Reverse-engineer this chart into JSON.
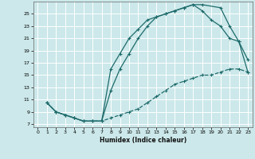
{
  "xlabel": "Humidex (Indice chaleur)",
  "background_color": "#cce8ea",
  "grid_color": "#ffffff",
  "line_color": "#1e6b6b",
  "xlim": [
    -0.5,
    23.5
  ],
  "ylim": [
    6.5,
    27
  ],
  "xticks": [
    0,
    1,
    2,
    3,
    4,
    5,
    6,
    7,
    8,
    9,
    10,
    11,
    12,
    13,
    14,
    15,
    16,
    17,
    18,
    19,
    20,
    21,
    22,
    23
  ],
  "yticks": [
    7,
    9,
    11,
    13,
    15,
    17,
    19,
    21,
    23,
    25
  ],
  "line1_x": [
    1,
    2,
    3,
    4,
    5,
    6,
    7,
    8,
    9,
    10,
    11,
    12,
    13,
    14,
    15,
    16,
    17,
    18,
    19,
    20,
    21,
    22,
    23
  ],
  "line1_y": [
    10.5,
    9.0,
    8.5,
    8.0,
    7.5,
    7.5,
    7.5,
    8.0,
    8.5,
    9.0,
    9.5,
    10.5,
    11.5,
    12.5,
    13.5,
    14.0,
    14.5,
    15.0,
    15.0,
    15.5,
    16.0,
    16.0,
    15.5
  ],
  "line2_x": [
    1,
    2,
    3,
    4,
    5,
    6,
    7,
    8,
    9,
    10,
    11,
    12,
    13,
    14,
    15,
    16,
    17,
    18,
    20,
    21,
    22,
    23
  ],
  "line2_y": [
    10.5,
    9.0,
    8.5,
    8.0,
    7.5,
    7.5,
    7.5,
    16.0,
    18.5,
    21.0,
    22.5,
    24.0,
    24.5,
    25.0,
    25.5,
    26.0,
    26.5,
    26.5,
    26.0,
    23.0,
    20.5,
    17.5
  ],
  "line3_x": [
    1,
    2,
    3,
    4,
    5,
    6,
    7,
    8,
    9,
    10,
    11,
    12,
    13,
    14,
    15,
    16,
    17,
    18,
    19,
    20,
    21,
    22,
    23
  ],
  "line3_y": [
    10.5,
    9.0,
    8.5,
    8.0,
    7.5,
    7.5,
    7.5,
    12.5,
    16.0,
    18.5,
    21.0,
    23.0,
    24.5,
    25.0,
    25.5,
    26.0,
    26.5,
    25.5,
    24.0,
    23.0,
    21.0,
    20.5,
    15.5
  ]
}
